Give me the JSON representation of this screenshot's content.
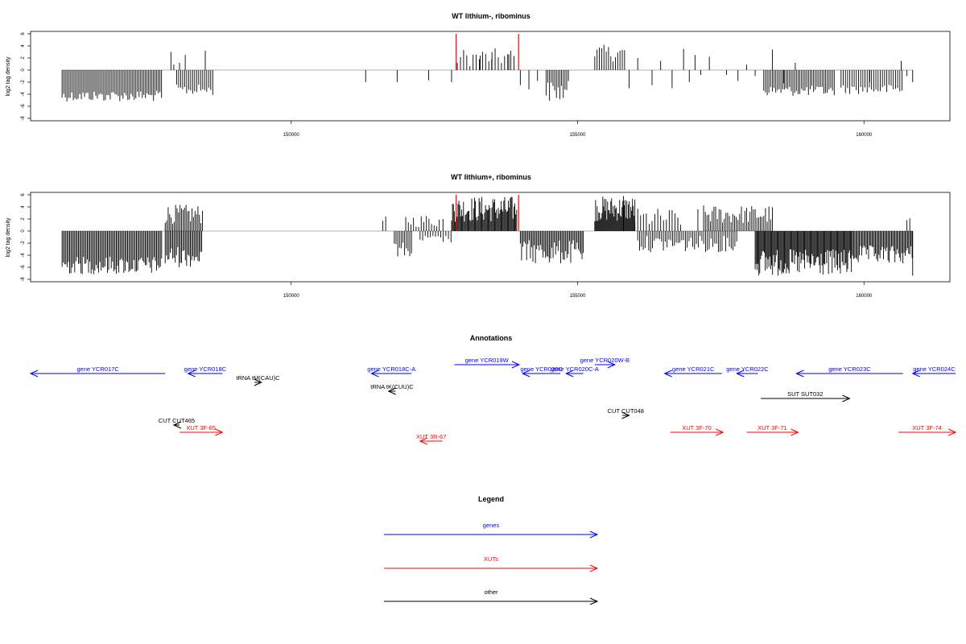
{
  "colors": {
    "genes": "#0000ff",
    "xuts": "#ff0000",
    "other": "#000000",
    "bars": "#000000",
    "marker": "#ff0000"
  },
  "chart_data": [
    {
      "type": "bar",
      "title": "WT lithium-, ribominus",
      "ylabel": "log2 tag density",
      "xlim": [
        145450,
        161500
      ],
      "ylim": [
        -8,
        6
      ],
      "x_ticks": [
        150000,
        155000,
        160000
      ],
      "y_ticks": [
        6,
        4,
        2,
        0,
        -2,
        -4,
        -6,
        -8
      ],
      "markers": [
        {
          "x": 152880,
          "y": 6
        },
        {
          "x": 153970,
          "y": 6
        }
      ],
      "spans": [
        {
          "x0": 146000,
          "x1": 147750,
          "y_lo": -3.4,
          "y_hi": -5.2,
          "step": 28
        },
        {
          "x0": 148000,
          "x1": 148650,
          "y_lo": -2.4,
          "y_hi": -4.2,
          "step": 35
        },
        {
          "x0": 152900,
          "x1": 153900,
          "y_lo": 0.6,
          "y_hi": 3.6,
          "step": 55
        },
        {
          "x0": 154450,
          "x1": 154850,
          "y_lo": -1.8,
          "y_hi": -5.3,
          "step": 30
        },
        {
          "x0": 155300,
          "x1": 155850,
          "y_lo": 1.4,
          "y_hi": 4.2,
          "step": 40
        },
        {
          "x0": 158250,
          "x1": 159500,
          "y_lo": -2.6,
          "y_hi": -4.3,
          "step": 30
        },
        {
          "x0": 159600,
          "x1": 160700,
          "y_lo": -2.4,
          "y_hi": -4.0,
          "step": 38
        }
      ],
      "bars": [
        [
          147900,
          3.0
        ],
        [
          147950,
          0.9
        ],
        [
          148050,
          1.2
        ],
        [
          148150,
          2.5
        ],
        [
          148500,
          3.2
        ],
        [
          151300,
          -2.0
        ],
        [
          151850,
          -2.0
        ],
        [
          152400,
          -1.7
        ],
        [
          152800,
          -2.0
        ],
        [
          153300,
          2.4
        ],
        [
          153500,
          1.8
        ],
        [
          153800,
          2.6
        ],
        [
          154000,
          -2.5
        ],
        [
          154150,
          -3.2
        ],
        [
          154300,
          -1.8
        ],
        [
          155900,
          -3.0
        ],
        [
          156050,
          2.0
        ],
        [
          156300,
          -2.5
        ],
        [
          156450,
          1.5
        ],
        [
          156650,
          -3.0
        ],
        [
          156850,
          3.5
        ],
        [
          156950,
          -2.0
        ],
        [
          157050,
          2.5
        ],
        [
          157150,
          -0.8
        ],
        [
          157300,
          2.2
        ],
        [
          157600,
          -0.8
        ],
        [
          157800,
          -1.8
        ],
        [
          157950,
          0.9
        ],
        [
          158100,
          -1.0
        ],
        [
          158400,
          3.4
        ],
        [
          158600,
          -2.2
        ],
        [
          158800,
          1.2
        ],
        [
          160100,
          -2.0
        ],
        [
          160650,
          1.5
        ],
        [
          160750,
          -1.0
        ],
        [
          160850,
          -2.0
        ]
      ]
    },
    {
      "type": "bar",
      "title": "WT lithium+, ribominus",
      "ylabel": "log2 tag density",
      "xlim": [
        145450,
        161500
      ],
      "ylim": [
        -8,
        6
      ],
      "x_ticks": [
        150000,
        155000,
        160000
      ],
      "y_ticks": [
        6,
        4,
        2,
        0,
        -2,
        -4,
        -6,
        -8
      ],
      "markers": [
        {
          "x": 152880,
          "y": 6
        },
        {
          "x": 153970,
          "y": 6
        }
      ],
      "spans": [
        {
          "x0": 146000,
          "x1": 147750,
          "y_lo": -4.2,
          "y_hi": -7.2,
          "step": 22
        },
        {
          "x0": 147800,
          "x1": 148450,
          "y_lo": -2.5,
          "y_hi": -6.0,
          "step": 22
        },
        {
          "x0": 147800,
          "x1": 148450,
          "y_lo": 1.2,
          "y_hi": 4.4,
          "step": 26
        },
        {
          "x0": 151800,
          "x1": 152100,
          "y_lo": -1.8,
          "y_hi": -4.2,
          "step": 30
        },
        {
          "x0": 152000,
          "x1": 152600,
          "y_lo": 0.6,
          "y_hi": 2.8,
          "step": 45
        },
        {
          "x0": 152250,
          "x1": 152800,
          "y_lo": -0.7,
          "y_hi": -2.0,
          "step": 45
        },
        {
          "x0": 152800,
          "x1": 153950,
          "y_lo": 1.5,
          "y_hi": 5.8,
          "step": 16
        },
        {
          "x0": 154000,
          "x1": 155100,
          "y_lo": -1.5,
          "y_hi": -5.5,
          "step": 22
        },
        {
          "x0": 155300,
          "x1": 156000,
          "y_lo": 1.6,
          "y_hi": 5.8,
          "step": 14
        },
        {
          "x0": 156050,
          "x1": 157800,
          "y_lo": -0.8,
          "y_hi": -3.5,
          "step": 32
        },
        {
          "x0": 156000,
          "x1": 156800,
          "y_lo": 0.5,
          "y_hi": 3.8,
          "step": 50
        },
        {
          "x0": 157200,
          "x1": 158400,
          "y_lo": 1.2,
          "y_hi": 4.3,
          "step": 30
        },
        {
          "x0": 158100,
          "x1": 159800,
          "y_lo": -3.0,
          "y_hi": -7.5,
          "step": 16
        },
        {
          "x0": 159800,
          "x1": 160850,
          "y_lo": -2.4,
          "y_hi": -5.5,
          "step": 20
        }
      ],
      "bars": [
        [
          151600,
          1.7
        ],
        [
          151650,
          2.4
        ],
        [
          152650,
          2.0
        ],
        [
          155800,
          5.8
        ],
        [
          156750,
          2.2
        ],
        [
          157100,
          3.6
        ],
        [
          160750,
          1.8
        ],
        [
          160800,
          2.1
        ],
        [
          160850,
          -7.4
        ]
      ]
    }
  ],
  "panels": {
    "annotations": {
      "title": "Annotations"
    },
    "legend": {
      "title": "Legend",
      "items": [
        {
          "label": "genes",
          "color": "#0000ff"
        },
        {
          "label": "XUTs",
          "color": "#ff0000"
        },
        {
          "label": "other",
          "color": "#000000"
        }
      ]
    }
  },
  "annotations": [
    {
      "label": "gene YCR017C",
      "strand": "-",
      "x0": 145450,
      "x1": 147800,
      "color": "#0000ff",
      "row": 0
    },
    {
      "label": "gene YCR018C",
      "strand": "-",
      "x0": 148200,
      "x1": 148800,
      "color": "#0000ff",
      "row": 0
    },
    {
      "label": "tRNA tM(CAU)C",
      "strand": "+",
      "x0": 149360,
      "x1": 149480,
      "color": "#000000",
      "row": 1
    },
    {
      "label": "gene YCR018C-A",
      "strand": "-",
      "x0": 151400,
      "x1": 152100,
      "color": "#0000ff",
      "row": 0
    },
    {
      "label": "tRNA tK(CUU)C",
      "strand": "-",
      "x0": 151700,
      "x1": 151820,
      "color": "#000000",
      "row": 2
    },
    {
      "label": "gene YCR019W",
      "strand": "+",
      "x0": 152850,
      "x1": 153980,
      "color": "#0000ff",
      "row": -1
    },
    {
      "label": "gene YCR020C",
      "strand": "-",
      "x0": 154040,
      "x1": 154700,
      "color": "#0000ff",
      "row": 0
    },
    {
      "label": "gene YCR020C-A",
      "strand": "-",
      "x0": 154800,
      "x1": 155100,
      "color": "#0000ff",
      "row": 0
    },
    {
      "label": "gene YCR020W-B",
      "strand": "+",
      "x0": 155300,
      "x1": 155650,
      "color": "#0000ff",
      "row": -1
    },
    {
      "label": "gene YCR021C",
      "strand": "-",
      "x0": 156520,
      "x1": 157520,
      "color": "#0000ff",
      "row": 0
    },
    {
      "label": "gene YCR022C",
      "strand": "-",
      "x0": 157780,
      "x1": 158150,
      "color": "#0000ff",
      "row": 0
    },
    {
      "label": "gene YCR023C",
      "strand": "-",
      "x0": 158820,
      "x1": 160680,
      "color": "#0000ff",
      "row": 0
    },
    {
      "label": "gene YCR024C",
      "strand": "-",
      "x0": 160850,
      "x1": 161600,
      "color": "#0000ff",
      "row": 0
    },
    {
      "label": "SUT SUT032",
      "strand": "+",
      "x0": 158200,
      "x1": 159750,
      "color": "#000000",
      "row": 3
    },
    {
      "label": "CUT CUT465",
      "strand": "-",
      "x0": 147950,
      "x1": 148050,
      "color": "#000000",
      "row": 4
    },
    {
      "label": "CUT CUT048",
      "strand": "+",
      "x0": 155780,
      "x1": 155900,
      "color": "#000000",
      "row": 5
    },
    {
      "label": "XUT 3F-65",
      "strand": "+",
      "x0": 148050,
      "x1": 148800,
      "color": "#ff0000",
      "row": 6
    },
    {
      "label": "XUT 3R-67",
      "strand": "-",
      "x0": 152250,
      "x1": 152640,
      "color": "#ff0000",
      "row": 7
    },
    {
      "label": "XUT 3F-70",
      "strand": "+",
      "x0": 156620,
      "x1": 157540,
      "color": "#ff0000",
      "row": 6
    },
    {
      "label": "XUT 3F-71",
      "strand": "+",
      "x0": 157950,
      "x1": 158850,
      "color": "#ff0000",
      "row": 6
    },
    {
      "label": "XUT 3F-74",
      "strand": "+",
      "x0": 160600,
      "x1": 161600,
      "color": "#ff0000",
      "row": 6
    }
  ]
}
